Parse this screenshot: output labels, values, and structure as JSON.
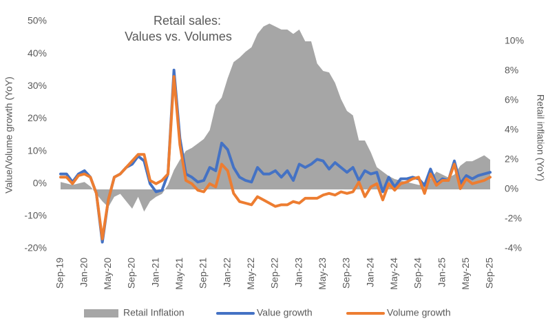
{
  "chart_data": {
    "type": "line",
    "title": [
      "Retail sales:",
      "Values vs. Volumes"
    ],
    "y_label": "Value/Volume growth (YoY)",
    "y2_label": "Retail inflation (YoY)",
    "categories": [
      "Sep-19",
      null,
      null,
      null,
      "Jan-20",
      null,
      null,
      null,
      "May-20",
      null,
      null,
      null,
      "Sep-20",
      null,
      null,
      null,
      "Jan-21",
      null,
      null,
      null,
      "May-21",
      null,
      null,
      null,
      "Sep-21",
      null,
      null,
      null,
      "Jan-22",
      null,
      null,
      null,
      "May-22",
      null,
      null,
      null,
      "Sep-22",
      null,
      null,
      null,
      "Jan-23",
      null,
      null,
      null,
      "May-23",
      null,
      null,
      null,
      "Sep-23",
      null,
      null,
      null,
      "Jan-24",
      null,
      null,
      null,
      "May-24",
      null,
      null,
      null,
      "Sep-24",
      null,
      null,
      null,
      "Jan-25",
      null,
      null,
      null,
      "May-25",
      null,
      null,
      null,
      "Sep-25"
    ],
    "series": [
      {
        "name": "Retail Inflation",
        "type": "area",
        "axis": "y2",
        "color": "#a6a6a6",
        "values": [
          0.5,
          0.4,
          0.3,
          0.4,
          0.5,
          0.2,
          -0.3,
          -0.8,
          -1.2,
          -0.5,
          -0.3,
          -0.8,
          -1.3,
          -0.5,
          -1.5,
          -0.8,
          -0.5,
          -0.3,
          0.3,
          1.3,
          2,
          2.6,
          2.8,
          3.1,
          3.4,
          4,
          5.7,
          6.2,
          7.5,
          8.6,
          8.9,
          9.3,
          9.6,
          10.5,
          11,
          11.2,
          11,
          10.8,
          10.8,
          10.5,
          10.8,
          10,
          10,
          8.5,
          8,
          7.9,
          7.2,
          6.1,
          5.3,
          5,
          3.3,
          3.3,
          2.5,
          1.5,
          1.2,
          0.9,
          0.7,
          0.6,
          0.5,
          0.4,
          0.3,
          0.3,
          0.7,
          1.2,
          1,
          0.8,
          1,
          1.6,
          1.9,
          1.9,
          2.1,
          2.3,
          2
        ]
      },
      {
        "name": "Value growth",
        "type": "line",
        "color": "#4472c4",
        "values": [
          3,
          3,
          0.5,
          3,
          4,
          2,
          -3,
          -18,
          -5,
          2,
          3,
          5,
          6,
          8.5,
          7,
          0,
          -2.5,
          -2,
          3,
          35,
          14,
          3,
          2,
          0.5,
          1,
          5,
          4,
          12.5,
          10.5,
          5,
          2,
          1,
          0.5,
          5,
          3,
          3,
          4,
          2,
          4,
          1,
          6,
          5,
          6,
          7.5,
          7,
          4.5,
          6.5,
          5,
          3.5,
          5,
          1,
          4,
          3,
          3.5,
          -2.5,
          2,
          -1,
          1.5,
          1.5,
          2,
          1.5,
          -0.5,
          4.5,
          0,
          1.5,
          1,
          7,
          0,
          2.5,
          1.5,
          2.5,
          3,
          3.5
        ]
      },
      {
        "name": "Volume growth",
        "type": "line",
        "color": "#ed7d31",
        "values": [
          2,
          2,
          0,
          2.5,
          3,
          2,
          -3,
          -17,
          -5,
          2,
          3,
          5,
          7,
          9,
          9,
          1,
          0,
          1,
          3,
          33,
          12,
          1,
          0,
          -2,
          -2.5,
          0,
          -1,
          6,
          4,
          -3,
          -5.5,
          -6,
          -6.5,
          -4,
          -5,
          -6,
          -7,
          -6.5,
          -6.5,
          -5.5,
          -6,
          -4.5,
          -4.5,
          -4.5,
          -3.5,
          -3,
          -3.5,
          -2.5,
          -3,
          -2.5,
          0.5,
          -4,
          -1,
          0,
          -5,
          0,
          -2,
          0,
          0.5,
          1.5,
          2,
          -3,
          3,
          -0.5,
          1,
          1,
          6,
          -1.5,
          1.5,
          0,
          0.5,
          1,
          2
        ]
      }
    ],
    "ylim": [
      -20,
      50
    ],
    "yticks": [
      {
        "value": -20,
        "label": "-20%"
      },
      {
        "value": -10,
        "label": "-10%"
      },
      {
        "value": 0,
        "label": "0%"
      },
      {
        "value": 10,
        "label": "10%"
      },
      {
        "value": 20,
        "label": "20%"
      },
      {
        "value": 30,
        "label": "30%"
      },
      {
        "value": 40,
        "label": "40%"
      },
      {
        "value": 50,
        "label": "50%"
      }
    ],
    "y2lim": [
      -4,
      11.35
    ],
    "y2ticks": [
      {
        "value": -4,
        "label": "-4%"
      },
      {
        "value": -2,
        "label": "-2%"
      },
      {
        "value": 0,
        "label": "0%"
      },
      {
        "value": 2,
        "label": "2%"
      },
      {
        "value": 4,
        "label": "4%"
      },
      {
        "value": 6,
        "label": "6%"
      },
      {
        "value": 8,
        "label": "8%"
      },
      {
        "value": 10,
        "label": "10%"
      }
    ],
    "legend": "bottom"
  }
}
